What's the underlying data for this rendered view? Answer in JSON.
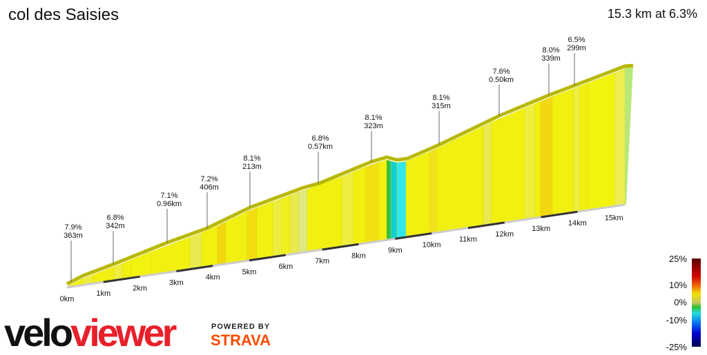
{
  "title": "col des Saisies",
  "summary": "15.3 km at 6.3%",
  "branding": {
    "logo_a": "velo",
    "logo_b": "viewer",
    "powered_by": "POWERED BY",
    "strava": "STRAVA",
    "logo_colors": [
      "#111111",
      "#e8202a"
    ],
    "strava_color": "#fc4c02"
  },
  "chart_data": {
    "type": "area",
    "xlabel": "",
    "ylabel": "",
    "x_ticks": [
      "0km",
      "1km",
      "2km",
      "3km",
      "4km",
      "5km",
      "6km",
      "7km",
      "8km",
      "9km",
      "10km",
      "11km",
      "12km",
      "13km",
      "14km",
      "15km"
    ],
    "total_distance_km": 15.3,
    "average_gradient_pct": 6.3,
    "annotations": [
      {
        "grade": "7.9%",
        "length": "363m"
      },
      {
        "grade": "6.8%",
        "length": "342m"
      },
      {
        "grade": "7.1%",
        "length": "0.96km"
      },
      {
        "grade": "7.2%",
        "length": "406m"
      },
      {
        "grade": "8.1%",
        "length": "213m"
      },
      {
        "grade": "6.8%",
        "length": "0.57km"
      },
      {
        "grade": "8.1%",
        "length": "323m"
      },
      {
        "grade": "8.1%",
        "length": "315m"
      },
      {
        "grade": "7.6%",
        "length": "0.50km"
      },
      {
        "grade": "8.0%",
        "length": "339m"
      },
      {
        "grade": "6.5%",
        "length": "299m"
      }
    ],
    "legend": {
      "labels": [
        "25%",
        "10%",
        "0%",
        "-10%",
        "-25%"
      ],
      "colors": [
        "#5a0000",
        "#e00000",
        "#f0e000",
        "#30c030",
        "#20e0e0",
        "#0000e0",
        "#000050"
      ]
    }
  }
}
